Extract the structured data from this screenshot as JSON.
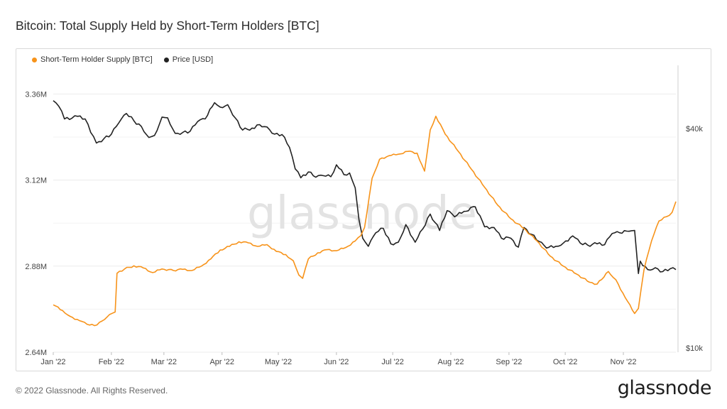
{
  "header": {
    "title": "Bitcoin: Total Supply Held by Short-Term Holders [BTC]"
  },
  "footer": {
    "copyright": "© 2022 Glassnode. All Rights Reserved.",
    "brand": "glassnode"
  },
  "watermark": "glassnode",
  "colors": {
    "sth_supply": "#f7931a",
    "price": "#222222"
  },
  "chart_data": {
    "type": "line",
    "title": "Bitcoin: Total Supply Held by Short-Term Holders [BTC]",
    "x_labels": [
      "Jan '22",
      "Feb '22",
      "Mar '22",
      "Apr '22",
      "May '22",
      "Jun '22",
      "Jul '22",
      "Aug '22",
      "Sep '22",
      "Oct '22",
      "Nov '22"
    ],
    "xlim": [
      "2022-01-01",
      "2022-11-29"
    ],
    "y_left": {
      "label": "",
      "ticks": [
        "2.64M",
        "2.88M",
        "3.12M",
        "3.36M"
      ],
      "tick_values": [
        2640000,
        2880000,
        3120000,
        3360000
      ],
      "ylim": [
        2640000,
        3440000
      ]
    },
    "y_right": {
      "label": "",
      "scale": "log",
      "ticks": [
        "$10k",
        "$40k"
      ],
      "tick_values": [
        10000,
        40000
      ]
    },
    "grid": true,
    "legend": "top-left",
    "series": [
      {
        "name": "Short-Term Holder Supply [BTC]",
        "axis": "left",
        "points": [
          [
            "2022-01-01",
            2772000
          ],
          [
            "2022-01-06",
            2756000
          ],
          [
            "2022-01-10",
            2740000
          ],
          [
            "2022-01-15",
            2728000
          ],
          [
            "2022-01-19",
            2718000
          ],
          [
            "2022-01-23",
            2714000
          ],
          [
            "2022-01-27",
            2727000
          ],
          [
            "2022-01-31",
            2745000
          ],
          [
            "2022-02-03",
            2752000
          ],
          [
            "2022-02-04",
            2860000
          ],
          [
            "2022-02-08",
            2872000
          ],
          [
            "2022-02-13",
            2881000
          ],
          [
            "2022-02-18",
            2875000
          ],
          [
            "2022-02-23",
            2862000
          ],
          [
            "2022-02-28",
            2872000
          ],
          [
            "2022-03-06",
            2868000
          ],
          [
            "2022-03-11",
            2871000
          ],
          [
            "2022-03-16",
            2868000
          ],
          [
            "2022-03-21",
            2880000
          ],
          [
            "2022-03-26",
            2900000
          ],
          [
            "2022-03-31",
            2925000
          ],
          [
            "2022-04-05",
            2935000
          ],
          [
            "2022-04-10",
            2948000
          ],
          [
            "2022-04-15",
            2945000
          ],
          [
            "2022-04-20",
            2935000
          ],
          [
            "2022-04-25",
            2940000
          ],
          [
            "2022-04-30",
            2921000
          ],
          [
            "2022-05-05",
            2912000
          ],
          [
            "2022-05-09",
            2895000
          ],
          [
            "2022-05-12",
            2855000
          ],
          [
            "2022-05-14",
            2846000
          ],
          [
            "2022-05-17",
            2900000
          ],
          [
            "2022-05-22",
            2917000
          ],
          [
            "2022-05-27",
            2926000
          ],
          [
            "2022-06-01",
            2923000
          ],
          [
            "2022-06-06",
            2932000
          ],
          [
            "2022-06-11",
            2950000
          ],
          [
            "2022-06-14",
            2965000
          ],
          [
            "2022-06-16",
            2988000
          ],
          [
            "2022-06-20",
            3125000
          ],
          [
            "2022-06-24",
            3178000
          ],
          [
            "2022-06-29",
            3188000
          ],
          [
            "2022-07-04",
            3192000
          ],
          [
            "2022-07-09",
            3200000
          ],
          [
            "2022-07-14",
            3195000
          ],
          [
            "2022-07-18",
            3145000
          ],
          [
            "2022-07-21",
            3260000
          ],
          [
            "2022-07-24",
            3298000
          ],
          [
            "2022-07-29",
            3248000
          ],
          [
            "2022-08-05",
            3200000
          ],
          [
            "2022-08-12",
            3150000
          ],
          [
            "2022-08-19",
            3100000
          ],
          [
            "2022-08-26",
            3050000
          ],
          [
            "2022-09-02",
            3012000
          ],
          [
            "2022-09-09",
            2985000
          ],
          [
            "2022-09-16",
            2950000
          ],
          [
            "2022-09-23",
            2908000
          ],
          [
            "2022-09-30",
            2880000
          ],
          [
            "2022-10-07",
            2858000
          ],
          [
            "2022-10-14",
            2835000
          ],
          [
            "2022-10-18",
            2830000
          ],
          [
            "2022-10-24",
            2865000
          ],
          [
            "2022-10-28",
            2842000
          ],
          [
            "2022-11-02",
            2792000
          ],
          [
            "2022-11-07",
            2748000
          ],
          [
            "2022-11-09",
            2762000
          ],
          [
            "2022-11-12",
            2870000
          ],
          [
            "2022-11-16",
            2950000
          ],
          [
            "2022-11-20",
            3006000
          ],
          [
            "2022-11-24",
            3018000
          ],
          [
            "2022-11-27",
            3030000
          ],
          [
            "2022-11-29",
            3060000
          ]
        ]
      },
      {
        "name": "Price [USD]",
        "axis": "right",
        "points": [
          [
            "2022-01-01",
            47700
          ],
          [
            "2022-01-04",
            46000
          ],
          [
            "2022-01-07",
            42500
          ],
          [
            "2022-01-11",
            42700
          ],
          [
            "2022-01-14",
            43200
          ],
          [
            "2022-01-18",
            42500
          ],
          [
            "2022-01-21",
            39000
          ],
          [
            "2022-01-24",
            36500
          ],
          [
            "2022-01-28",
            37500
          ],
          [
            "2022-02-01",
            38600
          ],
          [
            "2022-02-05",
            41500
          ],
          [
            "2022-02-09",
            44000
          ],
          [
            "2022-02-13",
            42000
          ],
          [
            "2022-02-17",
            40500
          ],
          [
            "2022-02-21",
            37800
          ],
          [
            "2022-02-24",
            38300
          ],
          [
            "2022-02-28",
            43000
          ],
          [
            "2022-03-03",
            42800
          ],
          [
            "2022-03-07",
            38800
          ],
          [
            "2022-03-11",
            39000
          ],
          [
            "2022-03-15",
            39300
          ],
          [
            "2022-03-19",
            41800
          ],
          [
            "2022-03-23",
            42500
          ],
          [
            "2022-03-28",
            47100
          ],
          [
            "2022-03-31",
            45800
          ],
          [
            "2022-04-04",
            46500
          ],
          [
            "2022-04-08",
            42800
          ],
          [
            "2022-04-12",
            39600
          ],
          [
            "2022-04-17",
            40100
          ],
          [
            "2022-04-21",
            41000
          ],
          [
            "2022-04-25",
            40400
          ],
          [
            "2022-04-29",
            38600
          ],
          [
            "2022-05-03",
            38500
          ],
          [
            "2022-05-07",
            35500
          ],
          [
            "2022-05-10",
            31000
          ],
          [
            "2022-05-13",
            29300
          ],
          [
            "2022-05-17",
            30400
          ],
          [
            "2022-05-21",
            29400
          ],
          [
            "2022-05-25",
            29700
          ],
          [
            "2022-05-29",
            29500
          ],
          [
            "2022-06-01",
            31800
          ],
          [
            "2022-06-05",
            29900
          ],
          [
            "2022-06-08",
            30200
          ],
          [
            "2022-06-11",
            27500
          ],
          [
            "2022-06-13",
            22500
          ],
          [
            "2022-06-15",
            20000
          ],
          [
            "2022-06-18",
            19000
          ],
          [
            "2022-06-22",
            20700
          ],
          [
            "2022-06-26",
            21300
          ],
          [
            "2022-06-30",
            19300
          ],
          [
            "2022-07-04",
            19500
          ],
          [
            "2022-07-08",
            21800
          ],
          [
            "2022-07-13",
            19500
          ],
          [
            "2022-07-17",
            21200
          ],
          [
            "2022-07-21",
            23300
          ],
          [
            "2022-07-26",
            21000
          ],
          [
            "2022-07-30",
            23800
          ],
          [
            "2022-08-03",
            22900
          ],
          [
            "2022-08-08",
            23700
          ],
          [
            "2022-08-14",
            24400
          ],
          [
            "2022-08-19",
            21500
          ],
          [
            "2022-08-24",
            21400
          ],
          [
            "2022-08-28",
            20000
          ],
          [
            "2022-09-02",
            20000
          ],
          [
            "2022-09-06",
            18900
          ],
          [
            "2022-09-09",
            21400
          ],
          [
            "2022-09-13",
            20500
          ],
          [
            "2022-09-17",
            19600
          ],
          [
            "2022-09-21",
            18800
          ],
          [
            "2022-09-26",
            19000
          ],
          [
            "2022-09-30",
            19400
          ],
          [
            "2022-10-05",
            20300
          ],
          [
            "2022-10-09",
            19400
          ],
          [
            "2022-10-13",
            19150
          ],
          [
            "2022-10-18",
            19300
          ],
          [
            "2022-10-22",
            19200
          ],
          [
            "2022-10-26",
            20600
          ],
          [
            "2022-10-30",
            20700
          ],
          [
            "2022-11-04",
            20900
          ],
          [
            "2022-11-07",
            21000
          ],
          [
            "2022-11-09",
            16000
          ],
          [
            "2022-11-10",
            17300
          ],
          [
            "2022-11-14",
            16400
          ],
          [
            "2022-11-18",
            16600
          ],
          [
            "2022-11-22",
            16200
          ],
          [
            "2022-11-26",
            16500
          ],
          [
            "2022-11-29",
            16400
          ]
        ]
      }
    ]
  }
}
